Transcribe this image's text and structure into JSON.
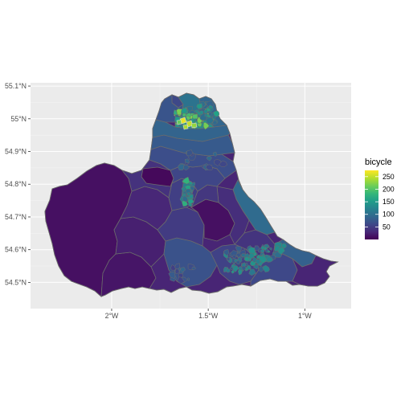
{
  "chart_data": {
    "type": "choropleth",
    "title": "",
    "xlabel": "",
    "ylabel": "",
    "x_ticks": [
      {
        "value": -2.0,
        "label": "2°W"
      },
      {
        "value": -1.5,
        "label": "1.5°W"
      },
      {
        "value": -1.0,
        "label": "1°W"
      }
    ],
    "y_ticks": [
      {
        "value": 54.5,
        "label": "54.5°N"
      },
      {
        "value": 54.6,
        "label": "54.6°N"
      },
      {
        "value": 54.7,
        "label": "54.7°N"
      },
      {
        "value": 54.8,
        "label": "54.8°N"
      },
      {
        "value": 54.9,
        "label": "54.9°N"
      },
      {
        "value": 55.0,
        "label": "55°N"
      },
      {
        "value": 55.1,
        "label": "55.1°N"
      }
    ],
    "xlim": [
      -2.42,
      -0.76
    ],
    "ylim": [
      54.42,
      55.11
    ],
    "grid": true,
    "legend": {
      "title": "bicycle",
      "position": "right",
      "range": [
        0,
        275
      ],
      "breaks": [
        50,
        100,
        150,
        200,
        250
      ],
      "colormap": "viridis"
    },
    "colors": {
      "panel": "#ebebeb",
      "grid_major": "#ffffff",
      "grid_minor": "#f5f5f5",
      "border": "#6b6b6b",
      "viridis": [
        "#440154",
        "#482878",
        "#3e4989",
        "#31688e",
        "#26828e",
        "#1f9e89",
        "#35b779",
        "#6ece58",
        "#b5de2b",
        "#fde725"
      ]
    }
  }
}
